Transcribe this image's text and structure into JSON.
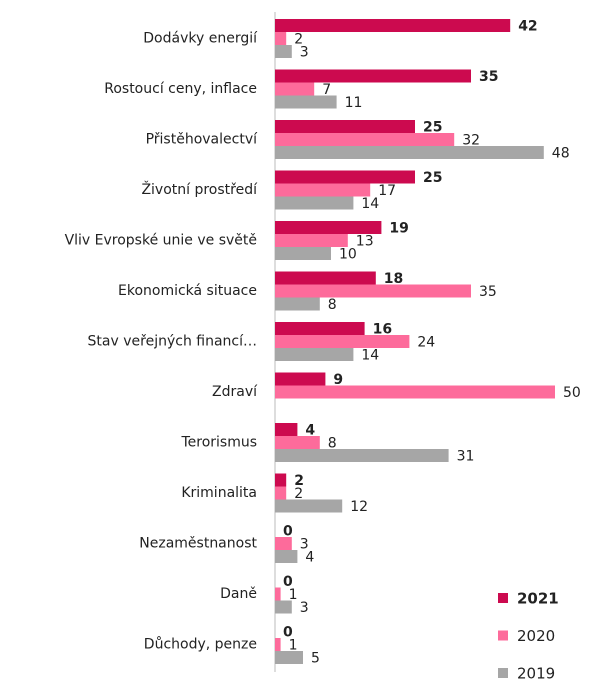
{
  "chart_data": {
    "type": "bar",
    "orientation": "horizontal",
    "categories": [
      "Dodávky energií",
      "Rostoucí ceny, inflace",
      "Přistěhovalectví",
      "Životní prostředí",
      "Vliv Evropské unie ve světě",
      "Ekonomická situace",
      "Stav veřejných financí…",
      "Zdraví",
      "Terorismus",
      "Kriminalita",
      "Nezaměstnanost",
      "Daně",
      "Důchody, penze"
    ],
    "series": [
      {
        "name": "2021",
        "color": "#cc0a4f",
        "values": [
          42,
          35,
          25,
          25,
          19,
          18,
          16,
          9,
          4,
          2,
          0,
          0,
          0
        ]
      },
      {
        "name": "2020",
        "color": "#fd6b9b",
        "values": [
          2,
          7,
          32,
          17,
          13,
          35,
          24,
          50,
          8,
          2,
          3,
          1,
          1
        ]
      },
      {
        "name": "2019",
        "color": "#a6a6a6",
        "values": [
          3,
          11,
          48,
          14,
          10,
          8,
          14,
          null,
          31,
          12,
          4,
          3,
          5
        ]
      }
    ],
    "xlim": [
      0,
      50
    ],
    "legend": "lower right"
  }
}
